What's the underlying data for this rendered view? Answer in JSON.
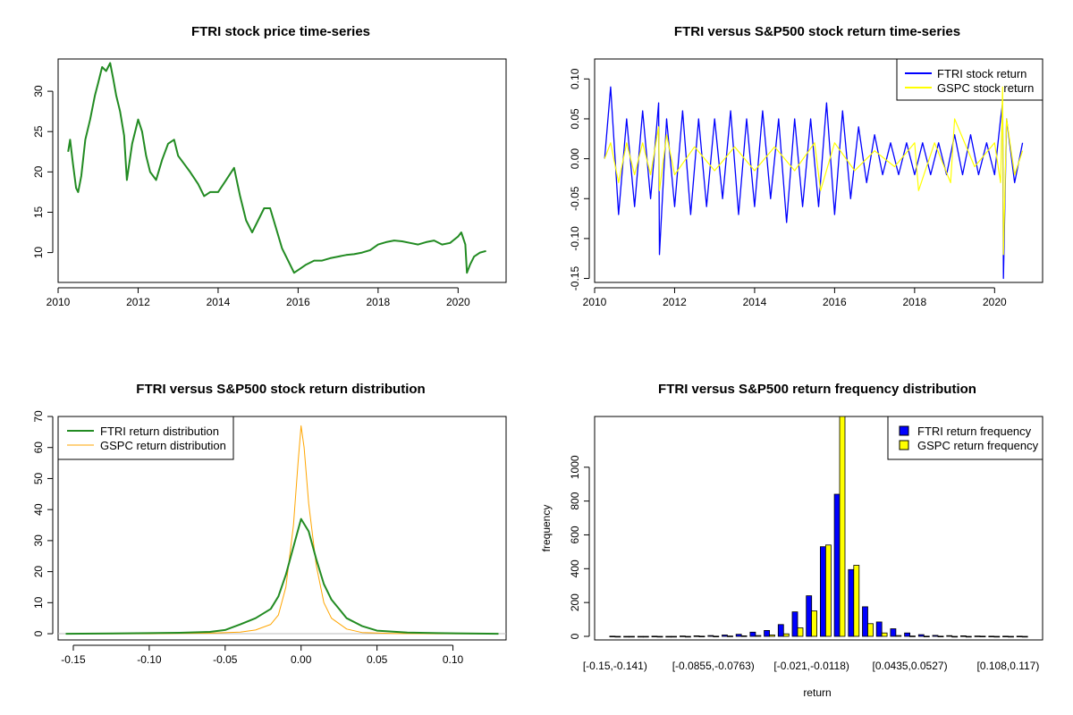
{
  "chart_data": [
    {
      "type": "line",
      "title": "FTRI stock price time-series",
      "xlabel": "",
      "ylabel": "",
      "xlim": [
        2010,
        2021.2
      ],
      "ylim": [
        6.3,
        34
      ],
      "xticks": [
        2010,
        2012,
        2014,
        2016,
        2018,
        2020
      ],
      "yticks": [
        10,
        15,
        20,
        25,
        30
      ],
      "series": [
        {
          "name": "FTRI price",
          "color": "#228B22",
          "x": [
            2010.25,
            2010.3,
            2010.37,
            2010.45,
            2010.5,
            2010.58,
            2010.68,
            2010.8,
            2010.92,
            2011.0,
            2011.1,
            2011.2,
            2011.3,
            2011.38,
            2011.45,
            2011.55,
            2011.65,
            2011.72,
            2011.85,
            2012.0,
            2012.1,
            2012.2,
            2012.3,
            2012.45,
            2012.6,
            2012.75,
            2012.9,
            2013.0,
            2013.15,
            2013.3,
            2013.5,
            2013.65,
            2013.8,
            2014.0,
            2014.2,
            2014.4,
            2014.55,
            2014.7,
            2014.85,
            2015.0,
            2015.15,
            2015.3,
            2015.45,
            2015.6,
            2015.75,
            2015.9,
            2016.05,
            2016.2,
            2016.4,
            2016.6,
            2016.8,
            2017.0,
            2017.2,
            2017.4,
            2017.6,
            2017.8,
            2018.0,
            2018.2,
            2018.4,
            2018.6,
            2018.8,
            2019.0,
            2019.2,
            2019.4,
            2019.6,
            2019.8,
            2020.0,
            2020.08,
            2020.18,
            2020.22,
            2020.3,
            2020.4,
            2020.55,
            2020.7
          ],
          "values": [
            22.5,
            24.0,
            21.0,
            18.0,
            17.5,
            19.5,
            24.0,
            26.5,
            29.5,
            31.0,
            33.0,
            32.5,
            33.5,
            31.5,
            29.5,
            27.5,
            24.5,
            19.0,
            23.5,
            26.5,
            25.0,
            22.0,
            20.0,
            19.0,
            21.5,
            23.5,
            24.0,
            22.0,
            21.0,
            20.0,
            18.5,
            17.0,
            17.5,
            17.5,
            19.0,
            20.5,
            17.0,
            14.0,
            12.5,
            14.0,
            15.5,
            15.5,
            13.0,
            10.5,
            9.0,
            7.5,
            8.0,
            8.5,
            9.0,
            9.0,
            9.3,
            9.5,
            9.7,
            9.8,
            10.0,
            10.3,
            11.0,
            11.3,
            11.5,
            11.4,
            11.2,
            11.0,
            11.3,
            11.5,
            11.0,
            11.2,
            12.0,
            12.5,
            11.0,
            7.5,
            8.5,
            9.5,
            10.0,
            10.2
          ]
        }
      ]
    },
    {
      "type": "line",
      "title": "FTRI versus S&P500 stock return time-series",
      "xlabel": "",
      "ylabel": "",
      "xlim": [
        2010,
        2021.2
      ],
      "ylim": [
        -0.155,
        0.125
      ],
      "xticks": [
        2010,
        2012,
        2014,
        2016,
        2018,
        2020
      ],
      "yticks": [
        -0.15,
        -0.1,
        -0.05,
        0.0,
        0.05,
        0.1
      ],
      "ytick_labels": [
        "-0.15",
        "-0.10",
        "-0.05",
        "0.00",
        "0.05",
        "0.10"
      ],
      "legend": {
        "position": "top-right",
        "entries": [
          "FTRI stock return",
          "GSPC stock return"
        ]
      },
      "series": [
        {
          "name": "FTRI stock return",
          "color": "#0000FF",
          "x": [
            2010.25,
            2010.4,
            2010.6,
            2010.8,
            2011.0,
            2011.2,
            2011.4,
            2011.6,
            2011.62,
            2011.8,
            2012.0,
            2012.2,
            2012.4,
            2012.6,
            2012.8,
            2013.0,
            2013.2,
            2013.4,
            2013.6,
            2013.8,
            2014.0,
            2014.2,
            2014.4,
            2014.6,
            2014.8,
            2015.0,
            2015.2,
            2015.4,
            2015.6,
            2015.8,
            2016.0,
            2016.2,
            2016.4,
            2016.6,
            2016.8,
            2017.0,
            2017.2,
            2017.4,
            2017.6,
            2017.8,
            2018.0,
            2018.2,
            2018.4,
            2018.6,
            2018.8,
            2019.0,
            2019.2,
            2019.4,
            2019.6,
            2019.8,
            2020.0,
            2020.15,
            2020.2,
            2020.22,
            2020.3,
            2020.5,
            2020.7
          ],
          "values": [
            0.0,
            0.09,
            -0.07,
            0.05,
            -0.06,
            0.06,
            -0.05,
            0.07,
            -0.12,
            0.05,
            -0.06,
            0.06,
            -0.07,
            0.05,
            -0.06,
            0.05,
            -0.05,
            0.06,
            -0.07,
            0.05,
            -0.06,
            0.06,
            -0.05,
            0.05,
            -0.08,
            0.05,
            -0.06,
            0.05,
            -0.06,
            0.07,
            -0.07,
            0.06,
            -0.05,
            0.04,
            -0.03,
            0.03,
            -0.02,
            0.02,
            -0.02,
            0.02,
            -0.02,
            0.02,
            -0.02,
            0.02,
            -0.02,
            0.03,
            -0.02,
            0.03,
            -0.02,
            0.02,
            -0.02,
            0.05,
            0.07,
            -0.15,
            0.05,
            -0.03,
            0.02
          ]
        },
        {
          "name": "GSPC stock return",
          "color": "#FFFF00",
          "x": [
            2010.25,
            2010.4,
            2010.6,
            2010.8,
            2011.0,
            2011.2,
            2011.4,
            2011.6,
            2011.62,
            2011.8,
            2012.0,
            2012.5,
            2013.0,
            2013.5,
            2014.0,
            2014.5,
            2015.0,
            2015.5,
            2015.65,
            2016.0,
            2016.5,
            2017.0,
            2017.5,
            2018.0,
            2018.1,
            2018.5,
            2018.9,
            2019.0,
            2019.5,
            2020.0,
            2020.15,
            2020.2,
            2020.22,
            2020.3,
            2020.5,
            2020.7
          ],
          "values": [
            0.0,
            0.02,
            -0.03,
            0.02,
            -0.02,
            0.02,
            -0.02,
            0.04,
            -0.04,
            0.03,
            -0.02,
            0.015,
            -0.015,
            0.015,
            -0.015,
            0.015,
            -0.015,
            0.02,
            -0.04,
            0.02,
            -0.015,
            0.01,
            -0.01,
            0.02,
            -0.04,
            0.02,
            -0.03,
            0.05,
            -0.01,
            0.02,
            -0.03,
            0.09,
            -0.12,
            0.05,
            -0.02,
            0.01
          ]
        }
      ]
    },
    {
      "type": "line",
      "title": "FTRI versus S&P500 stock return distribution",
      "xlabel": "",
      "ylabel": "",
      "xlim": [
        -0.16,
        0.135
      ],
      "ylim": [
        -2,
        70
      ],
      "xticks": [
        -0.15,
        -0.1,
        -0.05,
        0.0,
        0.05,
        0.1
      ],
      "xtick_labels": [
        "-0.15",
        "-0.10",
        "-0.05",
        "0.00",
        "0.05",
        "0.10"
      ],
      "yticks": [
        0,
        10,
        20,
        30,
        40,
        50,
        60,
        70
      ],
      "legend": {
        "position": "top-left",
        "entries": [
          "FTRI return distribution",
          "GSPC return distribution"
        ]
      },
      "series": [
        {
          "name": "FTRI return distribution",
          "color": "#228B22",
          "x": [
            -0.155,
            -0.1,
            -0.08,
            -0.06,
            -0.05,
            -0.04,
            -0.03,
            -0.02,
            -0.015,
            -0.01,
            -0.005,
            0.0,
            0.005,
            0.01,
            0.015,
            0.02,
            0.03,
            0.04,
            0.05,
            0.07,
            0.09,
            0.13
          ],
          "values": [
            0,
            0.2,
            0.3,
            0.6,
            1.2,
            3,
            5,
            8,
            12,
            19,
            28,
            37,
            33,
            24,
            16,
            11,
            5,
            2.5,
            1,
            0.4,
            0.2,
            0
          ]
        },
        {
          "name": "GSPC return distribution",
          "color": "#FFA500",
          "x": [
            -0.155,
            -0.1,
            -0.06,
            -0.04,
            -0.03,
            -0.02,
            -0.015,
            -0.01,
            -0.005,
            -0.002,
            0.0,
            0.002,
            0.005,
            0.01,
            0.015,
            0.02,
            0.03,
            0.04,
            0.06,
            0.09,
            0.13
          ],
          "values": [
            0,
            0,
            0.2,
            0.5,
            1.2,
            3,
            6,
            15,
            35,
            55,
            67,
            60,
            42,
            22,
            10,
            5,
            1.5,
            0.4,
            0.1,
            0,
            0
          ]
        }
      ]
    },
    {
      "type": "bar",
      "title": "FTRI versus S&P500 return frequency distribution",
      "xlabel": "return",
      "ylabel": "frequency",
      "ylim": [
        0,
        1300
      ],
      "yticks": [
        0,
        200,
        400,
        600,
        800,
        1000
      ],
      "category_labels": [
        "[-0.15,-0.141)",
        "[-0.0855,-0.0763)",
        "[-0.021,-0.0118)",
        "[0.0435,0.0527)",
        "[0.108,0.117)"
      ],
      "legend": {
        "position": "top-right",
        "entries": [
          "FTRI return frequency",
          "GSPC return frequency"
        ]
      },
      "series": [
        {
          "name": "FTRI return frequency",
          "color": "#0000FF",
          "values": [
            1,
            0,
            0,
            1,
            0,
            2,
            3,
            5,
            8,
            12,
            25,
            35,
            70,
            145,
            240,
            530,
            840,
            395,
            175,
            85,
            45,
            20,
            10,
            6,
            4,
            3,
            2,
            1,
            1,
            1
          ]
        },
        {
          "name": "GSPC return frequency",
          "color": "#FFFF00",
          "values": [
            0,
            0,
            0,
            0,
            0,
            0,
            1,
            1,
            2,
            3,
            5,
            8,
            15,
            50,
            150,
            540,
            1300,
            420,
            75,
            20,
            5,
            2,
            1,
            1,
            0,
            0,
            1,
            0,
            0,
            0
          ]
        }
      ]
    }
  ]
}
